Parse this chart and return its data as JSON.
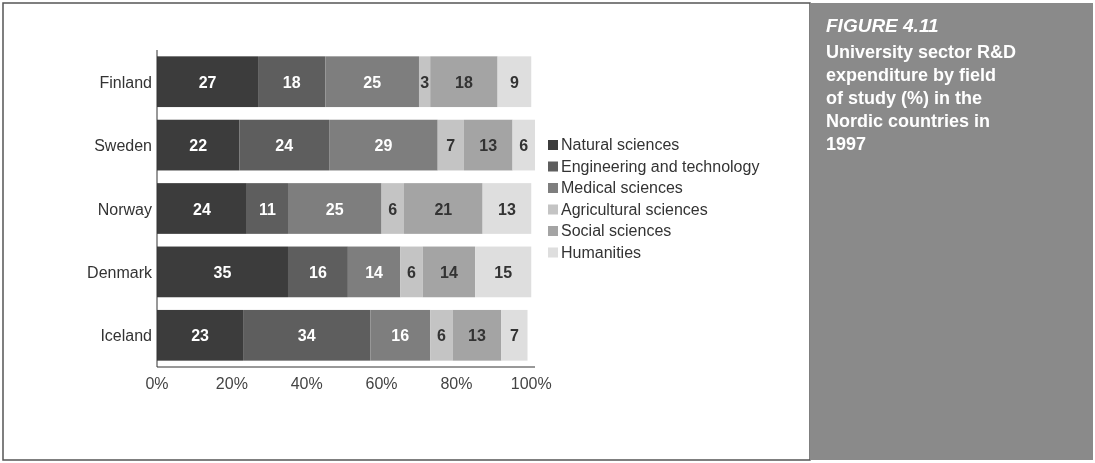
{
  "chart_data": {
    "type": "bar",
    "orientation": "horizontal",
    "stacked": true,
    "title": "FIGURE 4.11",
    "subtitle": "University sector R&D expenditure by field of study (%) in the Nordic countries in 1997",
    "categories": [
      "Finland",
      "Sweden",
      "Norway",
      "Denmark",
      "Iceland"
    ],
    "series": [
      {
        "name": "Natural sciences",
        "color": "#3c3c3c",
        "values": [
          27,
          22,
          24,
          35,
          23
        ]
      },
      {
        "name": "Engineering and technology",
        "color": "#5e5e5e",
        "values": [
          18,
          24,
          11,
          16,
          34
        ]
      },
      {
        "name": "Medical sciences",
        "color": "#7e7e7e",
        "values": [
          25,
          29,
          25,
          14,
          16
        ]
      },
      {
        "name": "Agricultural sciences",
        "color": "#c4c4c4",
        "values": [
          3,
          7,
          6,
          6,
          6
        ]
      },
      {
        "name": "Social sciences",
        "color": "#a4a4a4",
        "values": [
          18,
          13,
          21,
          14,
          13
        ]
      },
      {
        "name": "Humanities",
        "color": "#dedede",
        "values": [
          9,
          6,
          13,
          15,
          7
        ]
      }
    ],
    "xlim": [
      0,
      101
    ],
    "xticks": [
      {
        "value": 0,
        "label": "0%"
      },
      {
        "value": 20,
        "label": "20%"
      },
      {
        "value": 40,
        "label": "40%"
      },
      {
        "value": 60,
        "label": "60%"
      },
      {
        "value": 80,
        "label": "80%"
      },
      {
        "value": 100,
        "label": "100%"
      }
    ],
    "data_labels": true,
    "legend": "right",
    "grid": false
  }
}
